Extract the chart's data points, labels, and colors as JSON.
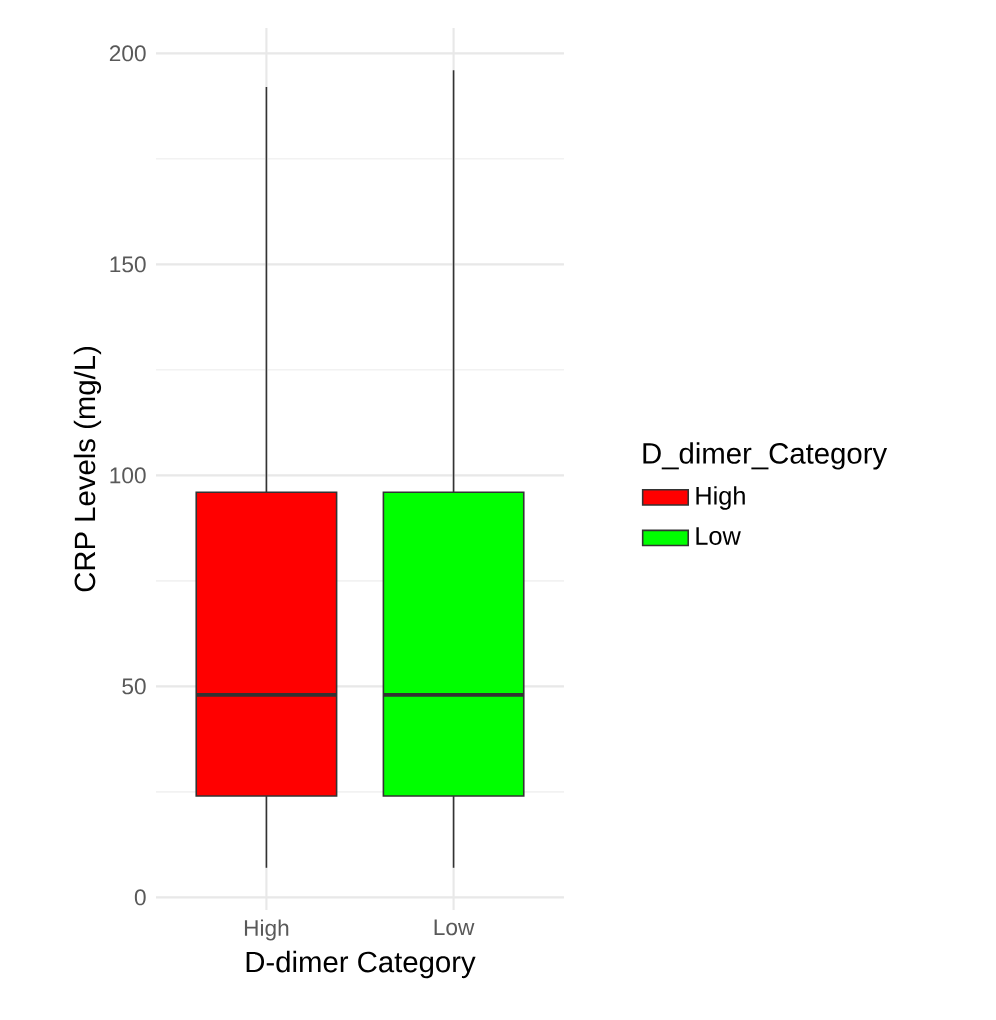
{
  "chart_data": {
    "type": "box",
    "xlabel": "D-dimer Category",
    "ylabel": "CRP Levels (mg/L)",
    "legend_title": "D_dimer_Category",
    "categories": [
      "High",
      "Low"
    ],
    "series": [
      {
        "name": "High",
        "color": "#ff0000",
        "boxes": [
          {
            "low": 7,
            "q1": 24,
            "median": 48,
            "q3": 96,
            "high": 192
          },
          null
        ]
      },
      {
        "name": "Low",
        "color": "#00ff00",
        "boxes": [
          null,
          {
            "low": 7,
            "q1": 24,
            "median": 48,
            "q3": 96,
            "high": 196
          }
        ]
      }
    ],
    "ylim": [
      -3,
      206
    ],
    "yticks": [
      0,
      50,
      100,
      150,
      200
    ],
    "grid": true,
    "legend": "right"
  }
}
